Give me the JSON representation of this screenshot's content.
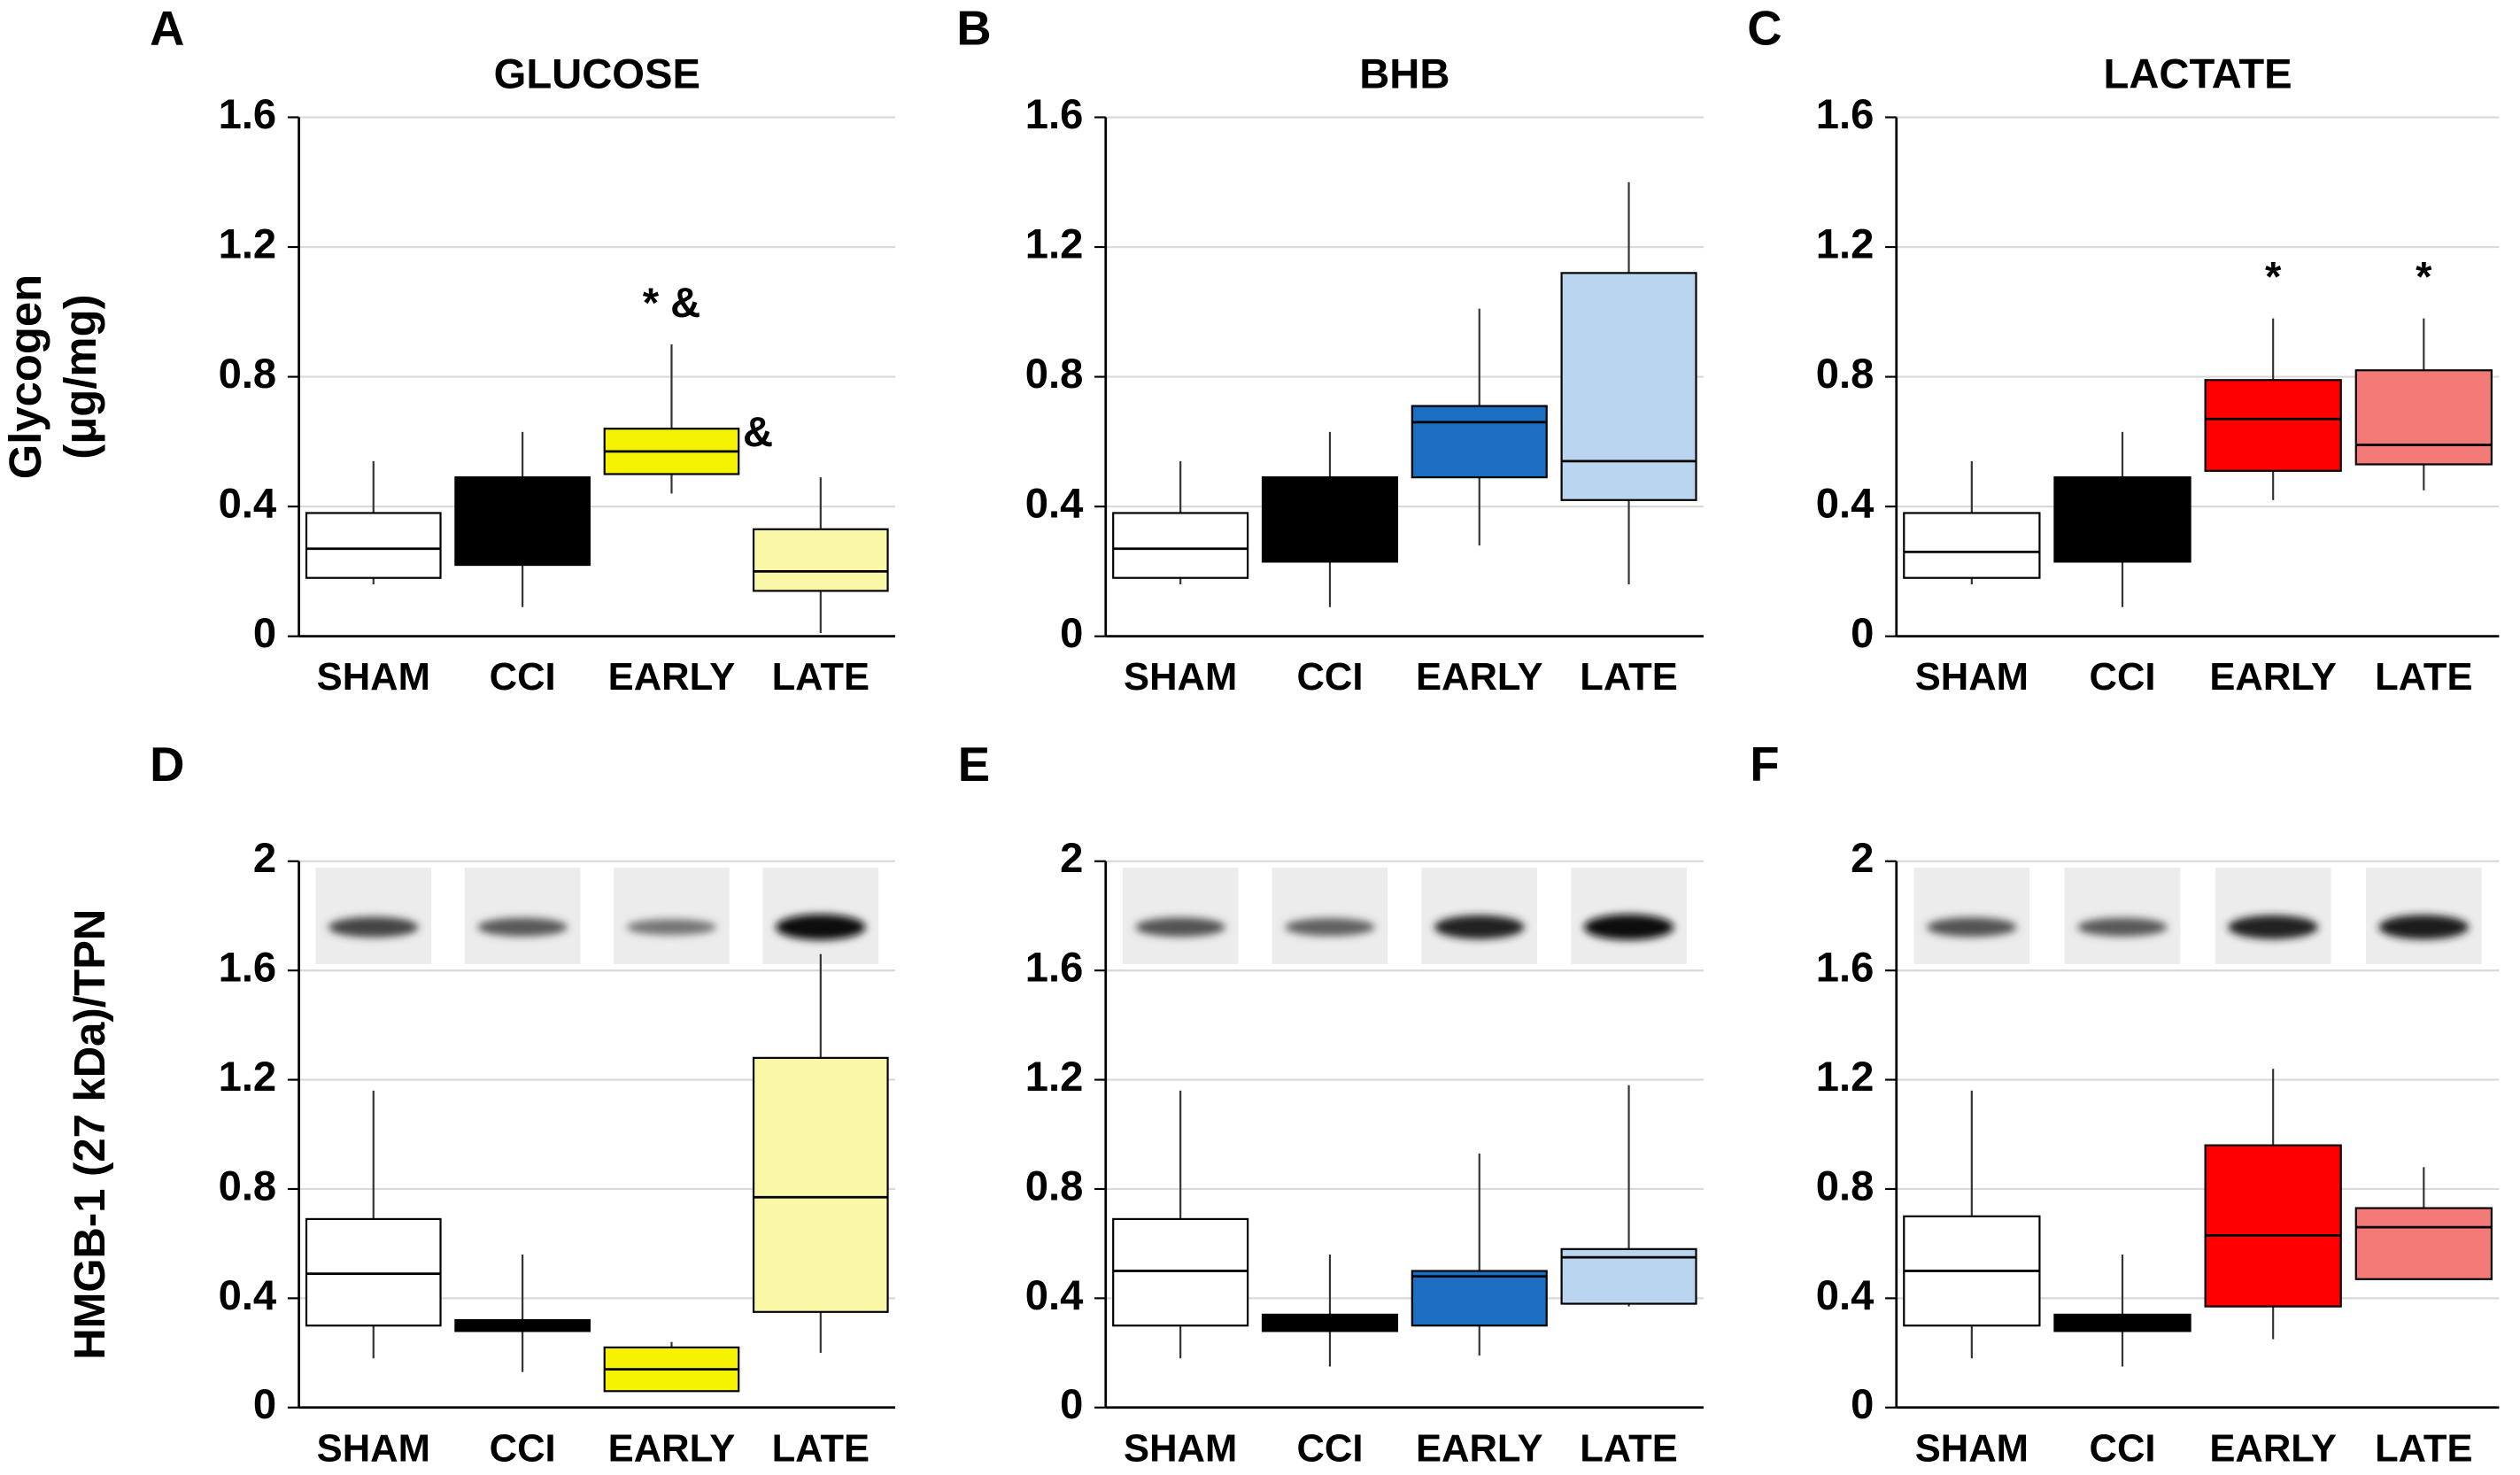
{
  "chart_data": [
    {
      "type": "box",
      "panel": "A",
      "title": "GLUCOSE",
      "ylabel": [
        "Glycogen",
        "(μg/mg)"
      ],
      "categories": [
        "SHAM",
        "CCI",
        "EARLY",
        "LATE"
      ],
      "colors": [
        "#ffffff",
        "#000000",
        "#f5f200",
        "#faf7a6"
      ],
      "boxes": [
        {
          "low": 0.16,
          "q1": 0.18,
          "median": 0.27,
          "q3": 0.38,
          "high": 0.54
        },
        {
          "low": 0.09,
          "q1": 0.22,
          "median": 0.36,
          "q3": 0.49,
          "high": 0.63
        },
        {
          "low": 0.44,
          "q1": 0.5,
          "median": 0.57,
          "q3": 0.64,
          "high": 0.9
        },
        {
          "low": 0.01,
          "q1": 0.14,
          "median": 0.2,
          "q3": 0.33,
          "high": 0.49
        }
      ],
      "annotations": [
        {
          "text": "* &",
          "category": "EARLY"
        },
        {
          "text": "&",
          "category": "EARLY",
          "side": "right"
        }
      ],
      "ylim": [
        0,
        1.6
      ],
      "yticks": [
        0,
        0.4,
        0.8,
        1.2,
        1.6
      ],
      "grid": true
    },
    {
      "type": "box",
      "panel": "B",
      "title": "BHB",
      "categories": [
        "SHAM",
        "CCI",
        "EARLY",
        "LATE"
      ],
      "colors": [
        "#ffffff",
        "#000000",
        "#1b6ec2",
        "#b9d5ef"
      ],
      "boxes": [
        {
          "low": 0.16,
          "q1": 0.18,
          "median": 0.27,
          "q3": 0.38,
          "high": 0.54
        },
        {
          "low": 0.09,
          "q1": 0.23,
          "median": 0.36,
          "q3": 0.49,
          "high": 0.63
        },
        {
          "low": 0.28,
          "q1": 0.49,
          "median": 0.66,
          "q3": 0.71,
          "high": 1.01
        },
        {
          "low": 0.16,
          "q1": 0.42,
          "median": 0.54,
          "q3": 1.12,
          "high": 1.4
        }
      ],
      "ylim": [
        0,
        1.6
      ],
      "yticks": [
        0,
        0.4,
        0.8,
        1.2,
        1.6
      ],
      "grid": true
    },
    {
      "type": "box",
      "panel": "C",
      "title": "LACTATE",
      "categories": [
        "SHAM",
        "CCI",
        "EARLY",
        "LATE"
      ],
      "colors": [
        "#ffffff",
        "#000000",
        "#ff0000",
        "#f47a78"
      ],
      "boxes": [
        {
          "low": 0.16,
          "q1": 0.18,
          "median": 0.26,
          "q3": 0.38,
          "high": 0.54
        },
        {
          "low": 0.09,
          "q1": 0.23,
          "median": 0.36,
          "q3": 0.49,
          "high": 0.63
        },
        {
          "low": 0.42,
          "q1": 0.51,
          "median": 0.67,
          "q3": 0.79,
          "high": 0.98
        },
        {
          "low": 0.45,
          "q1": 0.53,
          "median": 0.59,
          "q3": 0.82,
          "high": 0.98
        }
      ],
      "annotations": [
        {
          "text": "*",
          "category": "EARLY"
        },
        {
          "text": "*",
          "category": "LATE"
        }
      ],
      "ylim": [
        0,
        1.6
      ],
      "yticks": [
        0,
        0.4,
        0.8,
        1.2,
        1.6
      ],
      "grid": true
    },
    {
      "type": "box",
      "panel": "D",
      "ylabel": [
        "HMGB-1 (27 kDa)/TPN"
      ],
      "categories": [
        "SHAM",
        "CCI",
        "EARLY",
        "LATE"
      ],
      "colors": [
        "#ffffff",
        "#000000",
        "#f5f200",
        "#faf7a6"
      ],
      "boxes": [
        {
          "low": 0.18,
          "q1": 0.3,
          "median": 0.49,
          "q3": 0.69,
          "high": 1.16
        },
        {
          "low": 0.13,
          "q1": 0.28,
          "median": 0.3,
          "q3": 0.32,
          "high": 0.56
        },
        {
          "low": 0.06,
          "q1": 0.06,
          "median": 0.14,
          "q3": 0.22,
          "high": 0.24
        },
        {
          "low": 0.2,
          "q1": 0.35,
          "median": 0.77,
          "q3": 1.28,
          "high": 1.66
        }
      ],
      "ylim": [
        0,
        2
      ],
      "yticks": [
        0,
        0.4,
        0.8,
        1.2,
        1.6,
        2
      ],
      "grid": true
    },
    {
      "type": "box",
      "panel": "E",
      "categories": [
        "SHAM",
        "CCI",
        "EARLY",
        "LATE"
      ],
      "colors": [
        "#ffffff",
        "#000000",
        "#1b6ec2",
        "#b9d5ef"
      ],
      "boxes": [
        {
          "low": 0.18,
          "q1": 0.3,
          "median": 0.5,
          "q3": 0.69,
          "high": 1.16
        },
        {
          "low": 0.15,
          "q1": 0.28,
          "median": 0.3,
          "q3": 0.34,
          "high": 0.56
        },
        {
          "low": 0.19,
          "q1": 0.3,
          "median": 0.48,
          "q3": 0.5,
          "high": 0.93
        },
        {
          "low": 0.37,
          "q1": 0.38,
          "median": 0.55,
          "q3": 0.58,
          "high": 1.18
        }
      ],
      "ylim": [
        0,
        2
      ],
      "yticks": [
        0,
        0.4,
        0.8,
        1.2,
        1.6,
        2
      ],
      "grid": true
    },
    {
      "type": "box",
      "panel": "F",
      "categories": [
        "SHAM",
        "CCI",
        "EARLY",
        "LATE"
      ],
      "colors": [
        "#ffffff",
        "#000000",
        "#ff0000",
        "#f47a78"
      ],
      "boxes": [
        {
          "low": 0.18,
          "q1": 0.3,
          "median": 0.5,
          "q3": 0.7,
          "high": 1.16
        },
        {
          "low": 0.15,
          "q1": 0.28,
          "median": 0.3,
          "q3": 0.34,
          "high": 0.56
        },
        {
          "low": 0.25,
          "q1": 0.37,
          "median": 0.63,
          "q3": 0.96,
          "high": 1.24
        },
        {
          "low": 0.47,
          "q1": 0.47,
          "median": 0.66,
          "q3": 0.73,
          "high": 0.88
        }
      ],
      "ylim": [
        0,
        2
      ],
      "yticks": [
        0,
        0.4,
        0.8,
        1.2,
        1.6,
        2
      ],
      "grid": true
    }
  ]
}
